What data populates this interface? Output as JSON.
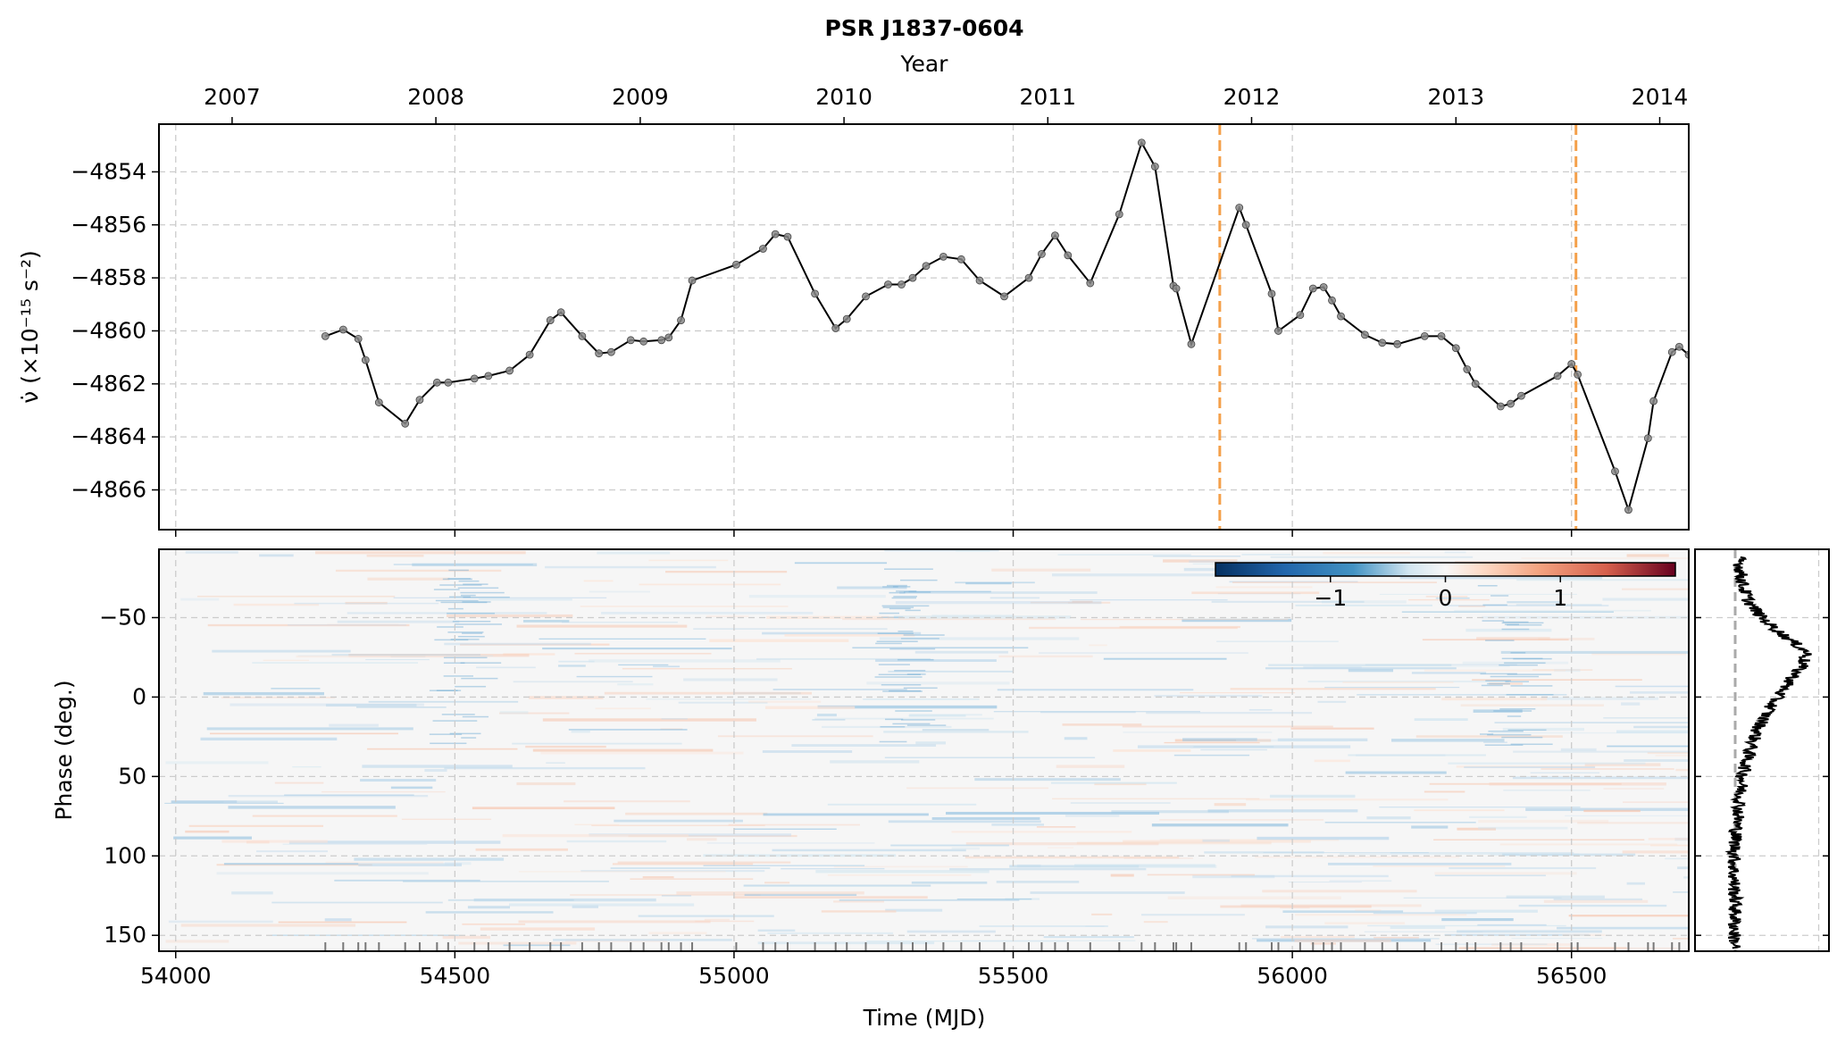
{
  "figure": {
    "title": "PSR J1837-0604",
    "top_xlabel": "Year",
    "bottom_xlabel": "Time (MJD)"
  },
  "chart_data": [
    {
      "type": "line",
      "panel": "top",
      "ylabel": "ν̇ (×10⁻¹⁵ s⁻²)",
      "xlim": [
        53970,
        56710
      ],
      "ylim": [
        -4867.5,
        -4852.2
      ],
      "yticks": [
        -4854,
        -4856,
        -4858,
        -4860,
        -4862,
        -4864,
        -4866
      ],
      "year_ticks": [
        {
          "label": "2007",
          "mjd": 54101
        },
        {
          "label": "2008",
          "mjd": 54466
        },
        {
          "label": "2009",
          "mjd": 54832
        },
        {
          "label": "2010",
          "mjd": 55197
        },
        {
          "label": "2011",
          "mjd": 55562
        },
        {
          "label": "2012",
          "mjd": 55927
        },
        {
          "label": "2013",
          "mjd": 56293
        },
        {
          "label": "2014",
          "mjd": 56658
        }
      ],
      "grid": true,
      "glitch_markers_mjd": [
        55870,
        56508
      ],
      "glitch_color": "#f4a04a",
      "line_color": "#000000",
      "series": [
        {
          "x": [
            54268,
            54300,
            54327,
            54340,
            54364,
            54411,
            54437,
            54468,
            54488,
            54535,
            54560,
            54598,
            54634,
            54671,
            54690,
            54728,
            54758,
            54780,
            54815,
            54838,
            54870,
            54883,
            54905,
            54925,
            55004,
            55052,
            55074,
            55096,
            55145,
            55182,
            55202,
            55236,
            55276,
            55300,
            55320,
            55344,
            55375,
            55407,
            55440,
            55484,
            55528,
            55551,
            55575,
            55598,
            55638,
            55690,
            55730,
            55754,
            55787,
            55792,
            55819,
            55905,
            55917,
            55963,
            55975,
            56014,
            56037,
            56056,
            56071,
            56087,
            56130,
            56161,
            56188,
            56237,
            56267,
            56293,
            56313,
            56328,
            56373,
            56391,
            56410,
            56475,
            56500,
            56511,
            56578,
            56602,
            56637,
            56647,
            56680,
            56693,
            56710
          ],
          "y": [
            -4860.2,
            -4859.95,
            -4860.3,
            -4861.1,
            -4862.7,
            -4863.5,
            -4862.6,
            -4861.95,
            -4861.95,
            -4861.8,
            -4861.7,
            -4861.5,
            -4860.9,
            -4859.6,
            -4859.3,
            -4860.2,
            -4860.85,
            -4860.8,
            -4860.35,
            -4860.4,
            -4860.35,
            -4860.25,
            -4859.6,
            -4858.1,
            -4857.5,
            -4856.9,
            -4856.35,
            -4856.45,
            -4858.6,
            -4859.9,
            -4859.55,
            -4858.7,
            -4858.25,
            -4858.25,
            -4858.0,
            -4857.55,
            -4857.2,
            -4857.3,
            -4858.1,
            -4858.7,
            -4858.0,
            -4857.1,
            -4856.4,
            -4857.15,
            -4858.2,
            -4855.6,
            -4852.9,
            -4853.8,
            -4858.3,
            -4858.4,
            -4860.5,
            -4855.35,
            -4856.0,
            -4858.6,
            -4860.0,
            -4859.4,
            -4858.4,
            -4858.35,
            -4858.85,
            -4859.45,
            -4860.15,
            -4860.45,
            -4860.5,
            -4860.2,
            -4860.2,
            -4860.65,
            -4861.45,
            -4862.0,
            -4862.85,
            -4862.75,
            -4862.45,
            -4861.7,
            -4861.25,
            -4861.65,
            -4865.3,
            -4866.75,
            -4864.05,
            -4862.65,
            -4860.8,
            -4860.6,
            -4860.9
          ]
        }
      ]
    },
    {
      "type": "heatmap",
      "panel": "bottom-left",
      "xlabel": "Time (MJD)",
      "ylabel": "Phase (deg.)",
      "xlim": [
        53970,
        56710
      ],
      "ylim": [
        160,
        -93
      ],
      "xticks": [
        54000,
        54500,
        55000,
        55500,
        56000,
        56500
      ],
      "yticks": [
        -50,
        0,
        50,
        100,
        150
      ],
      "grid": true,
      "colormap": "RdBu_r",
      "colorbar": {
        "ticks": [
          -1,
          0,
          1
        ],
        "range": [
          -2,
          2
        ],
        "placement": "top-right"
      },
      "observation_marks": "rug of short ticks along the bottom axis at each observation epoch"
    },
    {
      "type": "line",
      "panel": "bottom-right",
      "description_of_shape": "average pulse profile vs phase",
      "profile": [
        {
          "phase": -88,
          "v": 0.05
        },
        {
          "phase": -80,
          "v": 0.07
        },
        {
          "phase": -70,
          "v": 0.1
        },
        {
          "phase": -60,
          "v": 0.18
        },
        {
          "phase": -50,
          "v": 0.35
        },
        {
          "phase": -42,
          "v": 0.55
        },
        {
          "phase": -35,
          "v": 0.75
        },
        {
          "phase": -28,
          "v": 0.95
        },
        {
          "phase": -20,
          "v": 0.88
        },
        {
          "phase": -10,
          "v": 0.72
        },
        {
          "phase": 0,
          "v": 0.55
        },
        {
          "phase": 10,
          "v": 0.42
        },
        {
          "phase": 20,
          "v": 0.3
        },
        {
          "phase": 30,
          "v": 0.22
        },
        {
          "phase": 40,
          "v": 0.15
        },
        {
          "phase": 50,
          "v": 0.1
        },
        {
          "phase": 70,
          "v": 0.05
        },
        {
          "phase": 90,
          "v": 0.0
        },
        {
          "phase": 110,
          "v": -0.02
        },
        {
          "phase": 130,
          "v": 0.0
        },
        {
          "phase": 150,
          "v": -0.01
        },
        {
          "phase": 158,
          "v": 0.0
        }
      ]
    }
  ]
}
